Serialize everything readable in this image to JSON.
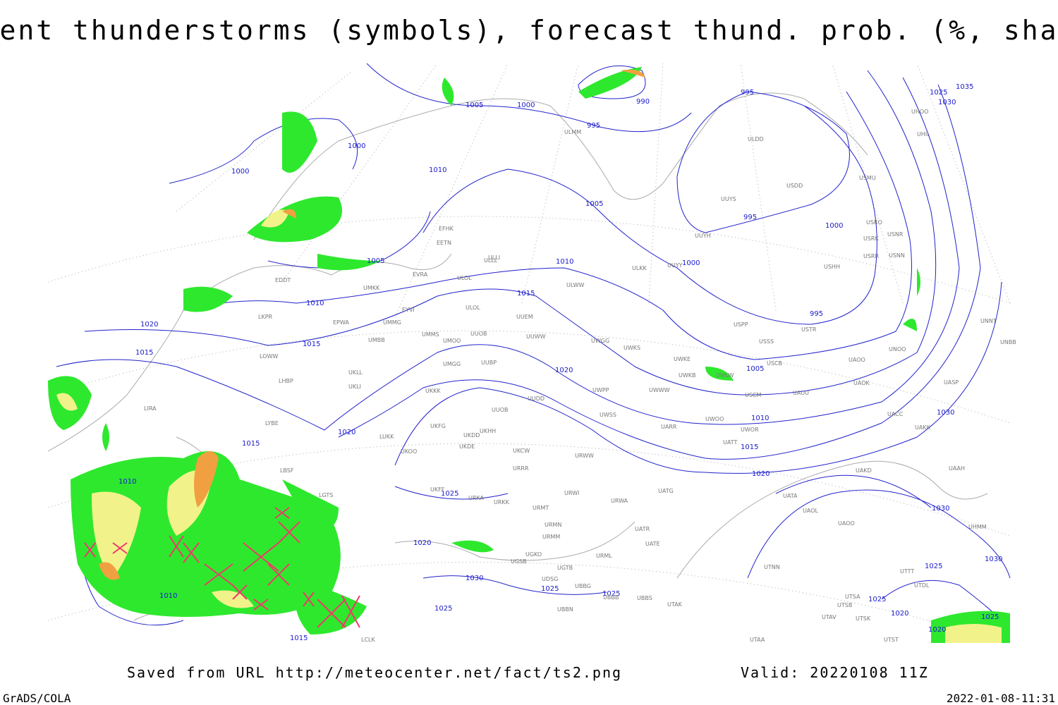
{
  "header": {
    "title": "Current thunderstorms (symbols), forecast thund. prob. (%, shaded)"
  },
  "isobar_labels": [
    "1005",
    "1000",
    "995",
    "990",
    "995",
    "1000",
    "1010",
    "1000",
    "1005",
    "995",
    "1000",
    "1005",
    "1010",
    "1000",
    "995",
    "1010",
    "1015",
    "1020",
    "1015",
    "1015",
    "1020",
    "1005",
    "1020",
    "1015",
    "1010",
    "1015",
    "1020",
    "1030",
    "1010",
    "1025",
    "1030",
    "1020",
    "1030",
    "1025",
    "1025",
    "1025",
    "1010",
    "1015",
    "1025",
    "1020",
    "1020",
    "1025",
    "1030",
    "1025",
    "1025",
    "1035",
    "1030"
  ],
  "stations": [
    "ULMM",
    "ULDD",
    "USDD",
    "USMU",
    "UUYS",
    "UUYH",
    "EFHK",
    "EETN",
    "ULLI",
    "EVRA",
    "ULOL",
    "ULLL",
    "ULKK",
    "UUYY",
    "USRO",
    "USRK",
    "USNR",
    "USRR",
    "USNN",
    "USHH",
    "EDDT",
    "UMKK",
    "EPWA",
    "UMMG",
    "EYVI",
    "ULOL",
    "UUEM",
    "ULWW",
    "LKPR",
    "UMMS",
    "UMOO",
    "UUOB",
    "UUWW",
    "UWGG",
    "UWKS",
    "USPP",
    "USSS",
    "USTR",
    "UNOO",
    "UNNT",
    "UNBB",
    "LOWW",
    "UMBB",
    "UMGG",
    "UUBP",
    "UWKE",
    "UWKB",
    "UWLW",
    "USCB",
    "UAOO",
    "UAOK",
    "UASP",
    "LHBP",
    "UKLL",
    "UKLI",
    "UKKK",
    "UUDD",
    "UWPP",
    "UWWW",
    "USCM",
    "UAUU",
    "LIRA",
    "LYBE",
    "UKFG",
    "UKDD",
    "UKHH",
    "UUOB",
    "UWSS",
    "UARR",
    "UWOO",
    "UWOR",
    "UATT",
    "UACC",
    "UAKK",
    "LUKK",
    "UKOO",
    "UKDE",
    "UKCW",
    "URWW",
    "URRR",
    "LBSF",
    "UKFF",
    "URKA",
    "URKK",
    "URMT",
    "URWI",
    "URWA",
    "UATG",
    "UAKD",
    "UAAH",
    "UATA",
    "UAOL",
    "UAOO",
    "LGTS",
    "UGSB",
    "UGKO",
    "URMM",
    "URMN",
    "UGTB",
    "URML",
    "UATR",
    "UATE",
    "UBBS",
    "UDSG",
    "UBBG",
    "UBBB",
    "UBBN",
    "UTAK",
    "UTNN",
    "UTTT",
    "UTDL",
    "UTSA",
    "UTSB",
    "UTAV",
    "UTSK",
    "UTAA",
    "UTST",
    "LCLK",
    "UHMM",
    "UHOO",
    "UHII"
  ],
  "footer": {
    "source": "Saved from URL http://meteocenter.net/fact/ts2.png",
    "valid": "Valid: 20220108 11Z",
    "software": "GrADS/COLA",
    "timestamp": "2022-01-08-11:31"
  }
}
